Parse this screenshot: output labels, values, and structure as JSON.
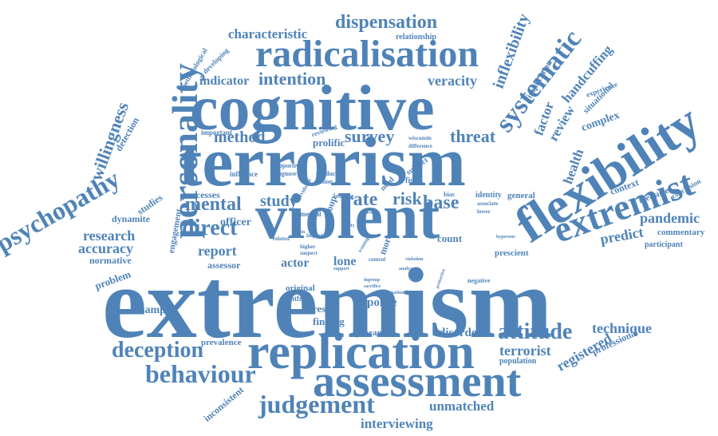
{
  "color": "#4f83b8",
  "words": [
    {
      "text": "extremism",
      "weight": 100
    },
    {
      "text": "terrorism",
      "weight": 78
    },
    {
      "text": "cognitive",
      "weight": 70
    },
    {
      "text": "violent",
      "weight": 62
    },
    {
      "text": "replication",
      "weight": 52
    },
    {
      "text": "flexibility",
      "weight": 52
    },
    {
      "text": "assessment",
      "weight": 48
    },
    {
      "text": "radicalisation",
      "weight": 44
    },
    {
      "text": "personality",
      "weight": 40
    },
    {
      "text": "extremist",
      "weight": 40
    },
    {
      "text": "systematic",
      "weight": 30
    },
    {
      "text": "behaviour",
      "weight": 30
    },
    {
      "text": "judgement",
      "weight": 30
    },
    {
      "text": "psychopathy",
      "weight": 28
    },
    {
      "text": "deception",
      "weight": 26
    },
    {
      "text": "attitude",
      "weight": 26
    },
    {
      "text": "direct",
      "weight": 26
    },
    {
      "text": "mental",
      "weight": 24
    },
    {
      "text": "dispensation",
      "weight": 22
    },
    {
      "text": "intention",
      "weight": 22
    },
    {
      "text": "willingness",
      "weight": 22
    },
    {
      "text": "survey",
      "weight": 20
    },
    {
      "text": "method",
      "weight": 20
    },
    {
      "text": "rate",
      "weight": 20
    },
    {
      "text": "base",
      "weight": 20
    },
    {
      "text": "risk",
      "weight": 20
    },
    {
      "text": "study",
      "weight": 20
    },
    {
      "text": "threat",
      "weight": 20
    },
    {
      "text": "veracity",
      "weight": 18
    },
    {
      "text": "inflexibility",
      "weight": 18
    },
    {
      "text": "pandemic",
      "weight": 18
    },
    {
      "text": "predict",
      "weight": 18
    },
    {
      "text": "research",
      "weight": 18
    },
    {
      "text": "report",
      "weight": 18
    },
    {
      "text": "accuracy",
      "weight": 18
    },
    {
      "text": "technique",
      "weight": 18
    },
    {
      "text": "terrorist",
      "weight": 18
    },
    {
      "text": "registered",
      "weight": 18
    },
    {
      "text": "interviewing",
      "weight": 16
    },
    {
      "text": "unmatched",
      "weight": 16
    },
    {
      "text": "characteristic",
      "weight": 16
    },
    {
      "text": "indicator",
      "weight": 16
    },
    {
      "text": "handcuffing",
      "weight": 16
    },
    {
      "text": "factor",
      "weight": 16
    },
    {
      "text": "review",
      "weight": 16
    },
    {
      "text": "health",
      "weight": 16
    },
    {
      "text": "police",
      "weight": 14
    },
    {
      "text": "officer",
      "weight": 14
    },
    {
      "text": "actor",
      "weight": 14
    },
    {
      "text": "lone",
      "weight": 14
    },
    {
      "text": "count",
      "weight": 12
    },
    {
      "text": "sample",
      "weight": 14
    },
    {
      "text": "disorder",
      "weight": 14
    },
    {
      "text": "complex",
      "weight": 14
    },
    {
      "text": "prolific",
      "weight": 12
    },
    {
      "text": "detection",
      "weight": 12
    },
    {
      "text": "dynamite",
      "weight": 12
    },
    {
      "text": "problem",
      "weight": 12
    },
    {
      "text": "normative",
      "weight": 12
    },
    {
      "text": "assessor",
      "weight": 12
    },
    {
      "text": "processes",
      "weight": 12
    },
    {
      "text": "studies",
      "weight": 12
    },
    {
      "text": "engagement",
      "weight": 12
    },
    {
      "text": "result",
      "weight": 12
    },
    {
      "text": "finding",
      "weight": 12
    },
    {
      "text": "ignorant",
      "weight": 11
    },
    {
      "text": "prevalence",
      "weight": 11
    },
    {
      "text": "inconsistent",
      "weight": 12
    },
    {
      "text": "professional",
      "weight": 12
    },
    {
      "text": "context",
      "weight": 12
    },
    {
      "text": "commentary",
      "weight": 11
    },
    {
      "text": "participant",
      "weight": 10
    },
    {
      "text": "prescient",
      "weight": 11
    },
    {
      "text": "measure",
      "weight": 11
    },
    {
      "text": "conclusion",
      "weight": 10
    },
    {
      "text": "general",
      "weight": 11
    },
    {
      "text": "identity",
      "weight": 10
    },
    {
      "text": "population",
      "weight": 10
    },
    {
      "text": "situational",
      "weight": 11
    },
    {
      "text": "experience",
      "weight": 10
    },
    {
      "text": "implication",
      "weight": 11
    },
    {
      "text": "relationship",
      "weight": 10
    },
    {
      "text": "methodological",
      "weight": 10
    },
    {
      "text": "developing",
      "weight": 10
    },
    {
      "text": "important",
      "weight": 10
    },
    {
      "text": "influence",
      "weight": 10
    },
    {
      "text": "mental",
      "weight": 10
    },
    {
      "text": "original",
      "weight": 10
    },
    {
      "text": "rentfrow",
      "weight": 10
    },
    {
      "text": "negative",
      "weight": 9
    },
    {
      "text": "group",
      "weight": 11
    },
    {
      "text": "fight",
      "weight": 10
    },
    {
      "text": "need",
      "weight": 10
    },
    {
      "text": "subject",
      "weight": 10
    },
    {
      "text": "supportive",
      "weight": 9
    },
    {
      "text": "diagnose",
      "weight": 9
    },
    {
      "text": "reviewing",
      "weight": 9
    },
    {
      "text": "conduct",
      "weight": 9
    },
    {
      "text": "fusion",
      "weight": 9
    },
    {
      "text": "looking",
      "weight": 9
    },
    {
      "text": "higher",
      "weight": 9
    },
    {
      "text": "suspect",
      "weight": 9
    },
    {
      "text": "related",
      "weight": 9
    },
    {
      "text": "impact",
      "weight": 8
    },
    {
      "text": "control",
      "weight": 8
    },
    {
      "text": "bias",
      "weight": 9
    },
    {
      "text": "associate",
      "weight": 8
    },
    {
      "text": "lower",
      "weight": 8
    },
    {
      "text": "wisconsin",
      "weight": 8
    },
    {
      "text": "difference",
      "weight": 8
    },
    {
      "text": "more",
      "weight": 11
    },
    {
      "text": "evidence",
      "weight": 8
    },
    {
      "text": "guilty",
      "weight": 7
    },
    {
      "text": "level",
      "weight": 7
    },
    {
      "text": "analyse",
      "weight": 7
    },
    {
      "text": "ingroup",
      "weight": 7
    },
    {
      "text": "sacrifice",
      "weight": 7
    },
    {
      "text": "protective",
      "weight": 7
    },
    {
      "text": "national",
      "weight": 7
    },
    {
      "text": "violation",
      "weight": 7
    },
    {
      "text": "training",
      "weight": 7
    },
    {
      "text": "hyperone",
      "weight": 7
    },
    {
      "text": "support",
      "weight": 7
    },
    {
      "text": "lobbin",
      "weight": 7
    }
  ]
}
